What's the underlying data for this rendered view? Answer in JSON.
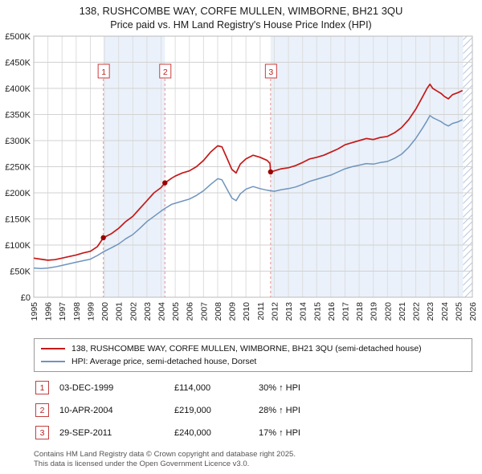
{
  "title": {
    "line1": "138, RUSHCOMBE WAY, CORFE MULLEN, WIMBORNE, BH21 3QU",
    "line2": "Price paid vs. HM Land Registry's House Price Index (HPI)"
  },
  "chart_data": {
    "type": "line",
    "x_range": [
      1995,
      2026
    ],
    "y_range_gbp_k": [
      0,
      500
    ],
    "y_tick_step_k": 50,
    "y_tick_labels": [
      "£0",
      "£50K",
      "£100K",
      "£150K",
      "£200K",
      "£250K",
      "£300K",
      "£350K",
      "£400K",
      "£450K",
      "£500K"
    ],
    "x_ticks": [
      1995,
      1996,
      1997,
      1998,
      1999,
      2000,
      2001,
      2002,
      2003,
      2004,
      2005,
      2006,
      2007,
      2008,
      2009,
      2010,
      2011,
      2012,
      2013,
      2014,
      2015,
      2016,
      2017,
      2018,
      2019,
      2020,
      2021,
      2022,
      2023,
      2024,
      2025,
      2026
    ],
    "grid": true,
    "band_color": "#eaf1fa",
    "series": [
      {
        "name": "138, RUSHCOMBE WAY, CORFE MULLEN, WIMBORNE, BH21 3QU (semi-detached house)",
        "color": "#c51919",
        "x": [
          1995,
          1995.5,
          1996,
          1996.5,
          1997,
          1997.5,
          1998,
          1998.5,
          1999,
          1999.5,
          1999.92,
          2000.5,
          2001,
          2001.5,
          2002,
          2002.5,
          2003,
          2003.5,
          2004,
          2004.27,
          2004.75,
          2005,
          2005.5,
          2006,
          2006.5,
          2007,
          2007.5,
          2008,
          2008.3,
          2008.6,
          2009,
          2009.3,
          2009.6,
          2010,
          2010.5,
          2011,
          2011.5,
          2011.7,
          2011.74,
          2012,
          2012.5,
          2013,
          2013.5,
          2014,
          2014.5,
          2015,
          2015.5,
          2016,
          2016.5,
          2017,
          2017.5,
          2018,
          2018.5,
          2019,
          2019.5,
          2020,
          2020.5,
          2021,
          2021.5,
          2022,
          2022.5,
          2022.8,
          2023,
          2023.2,
          2023.5,
          2023.8,
          2024,
          2024.3,
          2024.6,
          2025,
          2025.3
        ],
        "values_gbp_k": [
          75,
          73,
          71,
          72,
          75,
          78,
          81,
          85,
          88,
          97,
          114,
          122,
          132,
          145,
          155,
          170,
          185,
          200,
          210,
          219,
          228,
          232,
          238,
          242,
          250,
          262,
          278,
          290,
          288,
          270,
          245,
          238,
          255,
          265,
          272,
          268,
          262,
          256,
          240,
          242,
          246,
          248,
          252,
          258,
          265,
          268,
          272,
          278,
          284,
          292,
          296,
          300,
          304,
          302,
          306,
          308,
          315,
          325,
          340,
          360,
          385,
          400,
          408,
          400,
          395,
          390,
          385,
          380,
          388,
          392,
          396
        ]
      },
      {
        "name": "HPI: Average price, semi-detached house, Dorset",
        "color": "#6f94bd",
        "x": [
          1995,
          1995.5,
          1996,
          1996.5,
          1997,
          1997.5,
          1998,
          1998.5,
          1999,
          1999.5,
          1999.92,
          2000.5,
          2001,
          2001.5,
          2002,
          2002.5,
          2003,
          2003.5,
          2004,
          2004.27,
          2004.75,
          2005,
          2005.5,
          2006,
          2006.5,
          2007,
          2007.5,
          2008,
          2008.3,
          2008.6,
          2009,
          2009.3,
          2009.6,
          2010,
          2010.5,
          2011,
          2011.5,
          2011.7,
          2011.74,
          2012,
          2012.5,
          2013,
          2013.5,
          2014,
          2014.5,
          2015,
          2015.5,
          2016,
          2016.5,
          2017,
          2017.5,
          2018,
          2018.5,
          2019,
          2019.5,
          2020,
          2020.5,
          2021,
          2021.5,
          2022,
          2022.5,
          2022.8,
          2023,
          2023.2,
          2023.5,
          2023.8,
          2024,
          2024.3,
          2024.6,
          2025,
          2025.3
        ],
        "values_gbp_k": [
          56,
          55,
          56,
          58,
          61,
          64,
          67,
          70,
          73,
          80,
          87,
          95,
          102,
          112,
          120,
          132,
          145,
          155,
          165,
          170,
          178,
          180,
          184,
          188,
          195,
          204,
          216,
          227,
          225,
          210,
          190,
          185,
          198,
          207,
          212,
          208,
          205,
          204,
          204,
          203,
          206,
          208,
          211,
          216,
          222,
          226,
          230,
          234,
          240,
          246,
          250,
          253,
          256,
          255,
          258,
          260,
          266,
          274,
          287,
          304,
          325,
          338,
          348,
          344,
          340,
          336,
          332,
          328,
          333,
          336,
          340
        ]
      }
    ],
    "sales": [
      {
        "num": "1",
        "x": 1999.92,
        "date": "03-DEC-1999",
        "price_gbp": 114000,
        "vs_hpi": "30% ↑ HPI"
      },
      {
        "num": "2",
        "x": 2004.27,
        "date": "10-APR-2004",
        "price_gbp": 219000,
        "vs_hpi": "28% ↑ HPI"
      },
      {
        "num": "3",
        "x": 2011.74,
        "date": "29-SEP-2011",
        "price_gbp": 240000,
        "vs_hpi": "17% ↑ HPI"
      }
    ],
    "shaded_bands": [
      {
        "from": 1999.92,
        "to": 2004.27
      },
      {
        "from": 2011.74,
        "to": 2025.35
      }
    ],
    "hatch_band": {
      "from": 2025.35,
      "to": 2026
    },
    "legend_position": "bottom"
  },
  "legend": {
    "items": [
      {
        "label": "138, RUSHCOMBE WAY, CORFE MULLEN, WIMBORNE, BH21 3QU (semi-detached house)",
        "color": "#c51919"
      },
      {
        "label": "HPI: Average price, semi-detached house, Dorset",
        "color": "#6f94bd"
      }
    ]
  },
  "transactions": [
    {
      "num": "1",
      "date": "03-DEC-1999",
      "price": "£114,000",
      "hpi": "30% ↑ HPI"
    },
    {
      "num": "2",
      "date": "10-APR-2004",
      "price": "£219,000",
      "hpi": "28% ↑ HPI"
    },
    {
      "num": "3",
      "date": "29-SEP-2011",
      "price": "£240,000",
      "hpi": "17% ↑ HPI"
    }
  ],
  "footer": {
    "line1": "Contains HM Land Registry data © Crown copyright and database right 2025.",
    "line2": "This data is licensed under the Open Government Licence v3.0."
  }
}
